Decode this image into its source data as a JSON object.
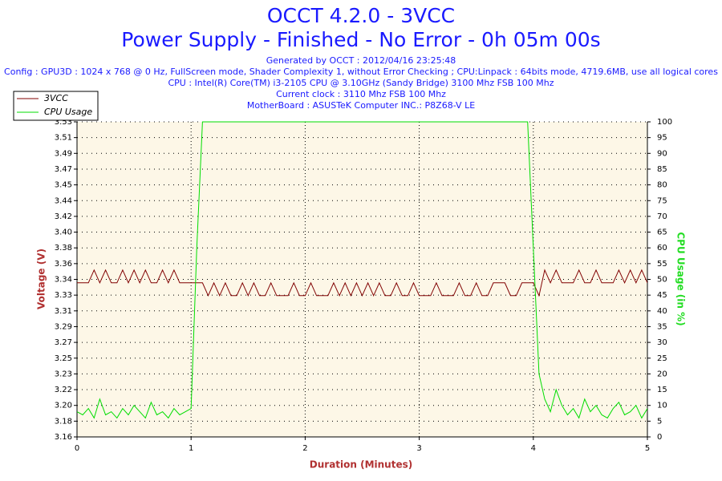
{
  "chart_data": {
    "type": "line",
    "title": "OCCT 4.2.0 - 3VCC",
    "subtitle": "Power Supply - Finished - No Error - 0h 05m 00s",
    "info": [
      "Generated by OCCT : 2012/04/16 23:25:48",
      "Config : GPU3D : 1024 x 768 @ 0 Hz, FullScreen mode, Shader Complexity 1, without Error Checking ; CPU:Linpack : 64bits mode, 4719.6MB, use all logical cores",
      "CPU : Intel(R) Core(TM) i3-2105 CPU @ 3.10GHz (Sandy Bridge) 3100 Mhz FSB 100 Mhz",
      "Current clock : 3110 Mhz FSB 100 Mhz",
      "MotherBoard : ASUSTeK Computer INC.: P8Z68-V LE"
    ],
    "xlabel": "Duration (Minutes)",
    "ylabel": "Voltage (V)",
    "y2label": "CPU Usage (in %)",
    "x": [
      0,
      0.05,
      0.1,
      0.15,
      0.2,
      0.25,
      0.3,
      0.35,
      0.4,
      0.45,
      0.5,
      0.55,
      0.6,
      0.65,
      0.7,
      0.75,
      0.8,
      0.85,
      0.9,
      0.95,
      1,
      1.05,
      1.1,
      1.15,
      1.2,
      1.25,
      1.3,
      1.35,
      1.4,
      1.45,
      1.5,
      1.55,
      1.6,
      1.65,
      1.7,
      1.75,
      1.8,
      1.85,
      1.9,
      1.95,
      2,
      2.05,
      2.1,
      2.15,
      2.2,
      2.25,
      2.3,
      2.35,
      2.4,
      2.45,
      2.5,
      2.55,
      2.6,
      2.65,
      2.7,
      2.75,
      2.8,
      2.85,
      2.9,
      2.95,
      3,
      3.05,
      3.1,
      3.15,
      3.2,
      3.25,
      3.3,
      3.35,
      3.4,
      3.45,
      3.5,
      3.55,
      3.6,
      3.65,
      3.7,
      3.75,
      3.8,
      3.85,
      3.9,
      3.95,
      4,
      4.05,
      4.1,
      4.15,
      4.2,
      4.25,
      4.3,
      4.35,
      4.4,
      4.45,
      4.5,
      4.55,
      4.6,
      4.65,
      4.7,
      4.75,
      4.8,
      4.85,
      4.9,
      4.95,
      5
    ],
    "series": [
      {
        "name": "3VCC",
        "color": "#800000",
        "values": [
          3.34,
          3.34,
          3.34,
          3.355,
          3.34,
          3.355,
          3.34,
          3.34,
          3.355,
          3.34,
          3.355,
          3.34,
          3.355,
          3.34,
          3.34,
          3.355,
          3.34,
          3.355,
          3.34,
          3.34,
          3.34,
          3.34,
          3.34,
          3.325,
          3.34,
          3.325,
          3.34,
          3.325,
          3.325,
          3.34,
          3.325,
          3.34,
          3.325,
          3.325,
          3.34,
          3.325,
          3.325,
          3.325,
          3.34,
          3.325,
          3.325,
          3.34,
          3.325,
          3.325,
          3.325,
          3.34,
          3.325,
          3.34,
          3.325,
          3.34,
          3.325,
          3.34,
          3.325,
          3.34,
          3.325,
          3.325,
          3.34,
          3.325,
          3.325,
          3.34,
          3.325,
          3.325,
          3.325,
          3.34,
          3.325,
          3.325,
          3.325,
          3.34,
          3.325,
          3.325,
          3.34,
          3.325,
          3.325,
          3.34,
          3.34,
          3.34,
          3.325,
          3.325,
          3.34,
          3.34,
          3.34,
          3.325,
          3.355,
          3.34,
          3.355,
          3.34,
          3.34,
          3.34,
          3.355,
          3.34,
          3.34,
          3.355,
          3.34,
          3.34,
          3.34,
          3.355,
          3.34,
          3.355,
          3.34,
          3.355,
          3.34
        ]
      },
      {
        "name": "CPU Usage",
        "color": "#00dd00",
        "axis": "y2",
        "values": [
          8,
          7,
          9,
          6,
          12,
          7,
          8,
          6,
          9,
          7,
          10,
          8,
          6,
          11,
          7,
          8,
          6,
          9,
          7,
          8,
          9,
          60,
          100,
          100,
          100,
          100,
          100,
          100,
          100,
          100,
          100,
          100,
          100,
          100,
          100,
          100,
          100,
          100,
          100,
          100,
          100,
          100,
          100,
          100,
          100,
          100,
          100,
          100,
          100,
          100,
          100,
          100,
          100,
          100,
          100,
          100,
          100,
          100,
          100,
          100,
          100,
          100,
          100,
          100,
          100,
          100,
          100,
          100,
          100,
          100,
          100,
          100,
          100,
          100,
          100,
          100,
          100,
          100,
          100,
          100,
          60,
          20,
          12,
          8,
          15,
          10,
          7,
          9,
          6,
          12,
          8,
          10,
          7,
          6,
          9,
          11,
          7,
          8,
          10,
          6,
          9
        ]
      }
    ],
    "xlim": [
      0,
      5
    ],
    "xticks": [
      0,
      1,
      2,
      3,
      4,
      5
    ],
    "ylim": [
      3.16,
      3.528
    ],
    "yticks": [
      3.16,
      {
        "value": 3.1784,
        "label": "3.18"
      },
      {
        "value": 3.1968,
        "label": "3.20"
      },
      {
        "value": 3.2152,
        "label": "3.22"
      },
      {
        "value": 3.2336,
        "label": "3.23"
      },
      {
        "value": 3.252,
        "label": "3.25"
      },
      {
        "value": 3.2704,
        "label": "3.27"
      },
      {
        "value": 3.2888,
        "label": "3.29"
      },
      {
        "value": 3.3072,
        "label": "3.31"
      },
      {
        "value": 3.3256,
        "label": "3.33"
      },
      {
        "value": 3.344,
        "label": "3.34"
      },
      {
        "value": 3.3624,
        "label": "3.36"
      },
      {
        "value": 3.3808,
        "label": "3.38"
      },
      {
        "value": 3.3992,
        "label": "3.40"
      },
      {
        "value": 3.4176,
        "label": "3.42"
      },
      {
        "value": 3.436,
        "label": "3.44"
      },
      {
        "value": 3.4544,
        "label": "3.45"
      },
      {
        "value": 3.4728,
        "label": "3.47"
      },
      {
        "value": 3.4912,
        "label": "3.49"
      },
      {
        "value": 3.5096,
        "label": "3.51"
      },
      {
        "value": 3.528,
        "label": "3.53"
      }
    ],
    "y2lim": [
      0,
      100
    ],
    "y2ticks": [
      0,
      5,
      10,
      15,
      20,
      25,
      30,
      35,
      40,
      45,
      50,
      55,
      60,
      65,
      70,
      75,
      80,
      85,
      90,
      95,
      100
    ],
    "grid": true,
    "legend": "upper left"
  }
}
